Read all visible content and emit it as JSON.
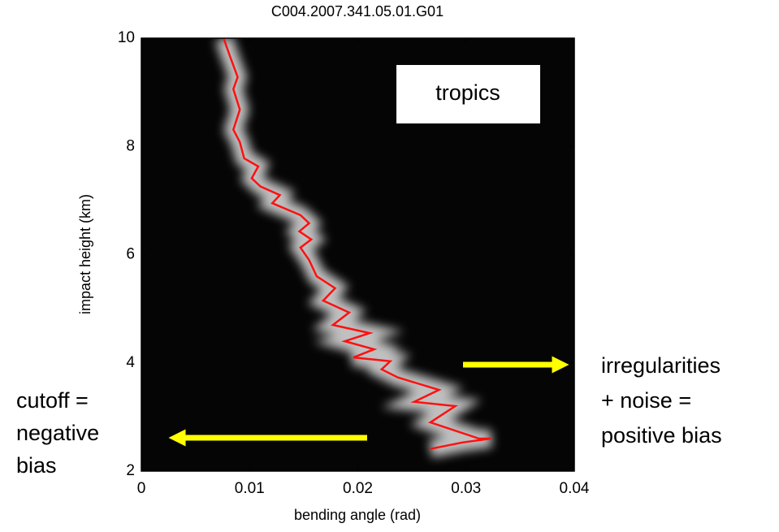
{
  "chart_data": {
    "type": "line",
    "title": "C004.2007.341.05.01.G01",
    "xlabel": "bending angle (rad)",
    "ylabel": "impact height (km)",
    "xlim": [
      0,
      0.04
    ],
    "ylim": [
      2,
      10
    ],
    "xticks": [
      0,
      0.01,
      0.02,
      0.03,
      0.04
    ],
    "yticks": [
      2,
      4,
      6,
      8,
      10
    ],
    "series": [
      {
        "color": "#ff1010",
        "x": [
          0.0076,
          0.0082,
          0.0089,
          0.0085,
          0.0091,
          0.0085,
          0.0091,
          0.0095,
          0.0108,
          0.0102,
          0.011,
          0.0128,
          0.0121,
          0.0147,
          0.0155,
          0.0146,
          0.0157,
          0.0147,
          0.0155,
          0.0162,
          0.0179,
          0.0168,
          0.0192,
          0.0177,
          0.0211,
          0.0188,
          0.0215,
          0.0196,
          0.023,
          0.0222,
          0.0237,
          0.0275,
          0.0252,
          0.029,
          0.0267,
          0.0312,
          0.0323,
          0.0297,
          0.0267
        ],
        "values": [
          10,
          9.66,
          9.28,
          9.06,
          8.68,
          8.31,
          8.08,
          7.78,
          7.63,
          7.41,
          7.26,
          7.1,
          6.95,
          6.73,
          6.58,
          6.43,
          6.28,
          6.13,
          5.9,
          5.6,
          5.38,
          5.15,
          4.93,
          4.7,
          4.55,
          4.4,
          4.25,
          4.1,
          4.03,
          3.88,
          3.73,
          3.5,
          3.28,
          3.2,
          2.9,
          2.6,
          2.6,
          2.53,
          2.41
        ]
      }
    ],
    "annotations": [
      {
        "lines": [
          "tropics"
        ]
      },
      {
        "lines": [
          "cutoff =",
          "negative",
          "bias"
        ]
      },
      {
        "lines": [
          "irregularities",
          "+ noise =",
          "positive bias"
        ]
      }
    ]
  }
}
